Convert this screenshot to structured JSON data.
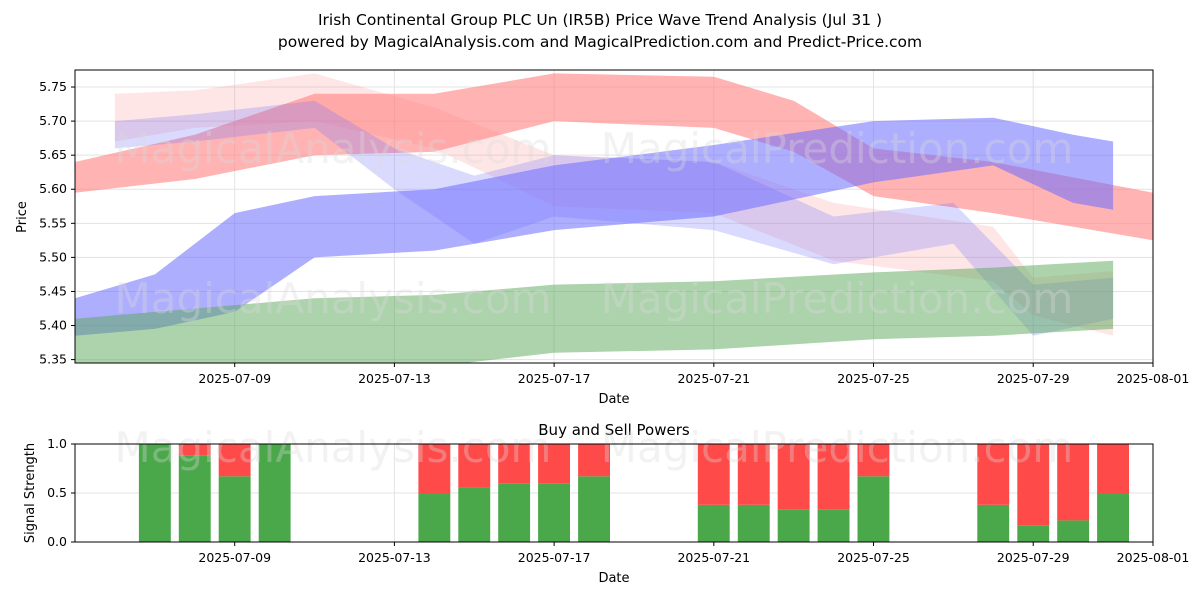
{
  "title": {
    "line1": "Irish Continental Group PLC Un (IR5B) Price Wave Trend Analysis (Jul 31 )",
    "line2": "powered by MagicalAnalysis.com and MagicalPrediction.com and Predict-Price.com"
  },
  "watermarks": [
    "MagicalAnalysis.com",
    "MagicalPrediction.com"
  ],
  "chart_data": [
    {
      "type": "area",
      "title": "",
      "xlabel": "Date",
      "ylabel": "Price",
      "x_range": [
        "2025-07-05",
        "2025-08-01"
      ],
      "ylim": [
        5.345,
        5.775
      ],
      "x_ticks": [
        "2025-07-09",
        "2025-07-13",
        "2025-07-17",
        "2025-07-21",
        "2025-07-25",
        "2025-07-29",
        "2025-08-01"
      ],
      "y_ticks": [
        5.35,
        5.4,
        5.45,
        5.5,
        5.55,
        5.6,
        5.65,
        5.7,
        5.75
      ],
      "grid": true,
      "colors": {
        "red": "#ff8080",
        "blue": "#6b6bff",
        "green": "#5aa85a"
      },
      "bands": [
        {
          "color": "red",
          "opacity": 0.6,
          "x": [
            "2025-07-05",
            "2025-07-08",
            "2025-07-11",
            "2025-07-14",
            "2025-07-17",
            "2025-07-21",
            "2025-07-23",
            "2025-07-25",
            "2025-07-28",
            "2025-08-01"
          ],
          "upper": [
            5.64,
            5.68,
            5.74,
            5.74,
            5.77,
            5.765,
            5.73,
            5.66,
            5.64,
            5.595
          ],
          "lower": [
            5.595,
            5.615,
            5.65,
            5.655,
            5.7,
            5.69,
            5.655,
            5.59,
            5.565,
            5.525
          ]
        },
        {
          "color": "red",
          "opacity": 0.2,
          "x": [
            "2025-07-06",
            "2025-07-08",
            "2025-07-11",
            "2025-07-14",
            "2025-07-17",
            "2025-07-21",
            "2025-07-24",
            "2025-07-28",
            "2025-07-29",
            "2025-07-31"
          ],
          "upper": [
            5.74,
            5.745,
            5.77,
            5.72,
            5.65,
            5.64,
            5.58,
            5.545,
            5.47,
            5.48
          ],
          "lower": [
            5.67,
            5.69,
            5.7,
            5.66,
            5.575,
            5.565,
            5.495,
            5.465,
            5.415,
            5.385
          ]
        },
        {
          "color": "blue",
          "opacity": 0.55,
          "x": [
            "2025-07-05",
            "2025-07-07",
            "2025-07-09",
            "2025-07-11",
            "2025-07-14",
            "2025-07-17",
            "2025-07-21",
            "2025-07-25",
            "2025-07-28",
            "2025-07-30",
            "2025-07-31"
          ],
          "upper": [
            5.44,
            5.475,
            5.565,
            5.59,
            5.6,
            5.635,
            5.665,
            5.7,
            5.705,
            5.68,
            5.67
          ],
          "lower": [
            5.385,
            5.395,
            5.42,
            5.5,
            5.51,
            5.54,
            5.56,
            5.61,
            5.635,
            5.58,
            5.57
          ]
        },
        {
          "color": "blue",
          "opacity": 0.25,
          "x": [
            "2025-07-06",
            "2025-07-08",
            "2025-07-11",
            "2025-07-13",
            "2025-07-15",
            "2025-07-17",
            "2025-07-21",
            "2025-07-24",
            "2025-07-27",
            "2025-07-29",
            "2025-07-31"
          ],
          "upper": [
            5.7,
            5.71,
            5.73,
            5.66,
            5.62,
            5.65,
            5.64,
            5.56,
            5.58,
            5.46,
            5.47
          ],
          "lower": [
            5.66,
            5.67,
            5.69,
            5.6,
            5.52,
            5.56,
            5.54,
            5.49,
            5.52,
            5.385,
            5.41
          ]
        },
        {
          "color": "green",
          "opacity": 0.5,
          "x": [
            "2025-07-05",
            "2025-07-08",
            "2025-07-11",
            "2025-07-14",
            "2025-07-17",
            "2025-07-21",
            "2025-07-25",
            "2025-07-28",
            "2025-07-31"
          ],
          "upper": [
            5.41,
            5.425,
            5.44,
            5.445,
            5.46,
            5.465,
            5.478,
            5.485,
            5.495
          ],
          "lower": [
            5.335,
            5.33,
            5.335,
            5.34,
            5.36,
            5.365,
            5.38,
            5.385,
            5.395
          ]
        }
      ]
    },
    {
      "type": "bar",
      "title": "Buy and Sell Powers",
      "xlabel": "Date",
      "ylabel": "Signal Strength",
      "x_range": [
        "2025-07-05",
        "2025-08-01"
      ],
      "ylim": [
        0,
        1
      ],
      "x_ticks": [
        "2025-07-09",
        "2025-07-13",
        "2025-07-17",
        "2025-07-21",
        "2025-07-25",
        "2025-07-29",
        "2025-08-01"
      ],
      "y_ticks": [
        "0.0",
        "0.5",
        "1.0"
      ],
      "grid": true,
      "colors": {
        "buy": "#4aa74a",
        "sell": "#ff4a4a"
      },
      "series": [
        {
          "name": "buy",
          "x": [
            "2025-07-07",
            "2025-07-08",
            "2025-07-09",
            "2025-07-10",
            "2025-07-14",
            "2025-07-15",
            "2025-07-16",
            "2025-07-17",
            "2025-07-18",
            "2025-07-21",
            "2025-07-22",
            "2025-07-23",
            "2025-07-24",
            "2025-07-25",
            "2025-07-28",
            "2025-07-29",
            "2025-07-30",
            "2025-07-31"
          ],
          "values": [
            1.0,
            0.88,
            0.67,
            1.0,
            0.5,
            0.56,
            0.6,
            0.6,
            0.67,
            0.38,
            0.38,
            0.33,
            0.33,
            0.67,
            0.38,
            0.17,
            0.22,
            0.5
          ]
        },
        {
          "name": "sell",
          "x": [
            "2025-07-07",
            "2025-07-08",
            "2025-07-09",
            "2025-07-10",
            "2025-07-14",
            "2025-07-15",
            "2025-07-16",
            "2025-07-17",
            "2025-07-18",
            "2025-07-21",
            "2025-07-22",
            "2025-07-23",
            "2025-07-24",
            "2025-07-25",
            "2025-07-28",
            "2025-07-29",
            "2025-07-30",
            "2025-07-31"
          ],
          "values": [
            0.0,
            0.12,
            0.33,
            0.0,
            0.5,
            0.44,
            0.4,
            0.4,
            0.33,
            0.62,
            0.62,
            0.67,
            0.67,
            0.33,
            0.62,
            0.83,
            0.78,
            0.5
          ]
        }
      ]
    }
  ]
}
